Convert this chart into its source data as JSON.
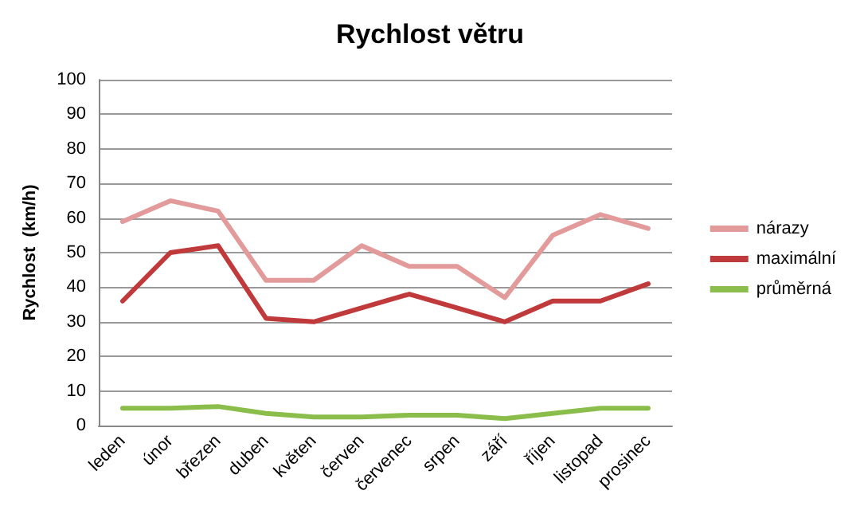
{
  "chart_data": {
    "type": "line",
    "title": "Rychlost větru",
    "ylabel": "Rychlost  (km/h)",
    "categories": [
      "leden",
      "únor",
      "březen",
      "duben",
      "květen",
      "červen",
      "červenec",
      "srpen",
      "září",
      "říjen",
      "listopad",
      "prosinec"
    ],
    "series": [
      {
        "name": "nárazy",
        "color": "#e39a9a",
        "values": [
          59,
          65,
          62,
          42,
          42,
          52,
          46,
          46,
          37,
          55,
          61,
          57
        ]
      },
      {
        "name": "maximální",
        "color": "#c0393b",
        "values": [
          36,
          50,
          52,
          31,
          30,
          34,
          38,
          34,
          30,
          36,
          36,
          41
        ]
      },
      {
        "name": "průměrná",
        "color": "#8bbd4a",
        "values": [
          5,
          5,
          5.5,
          3.5,
          2.5,
          2.5,
          3,
          3,
          2,
          3.5,
          5,
          5
        ]
      }
    ],
    "ylim": [
      0,
      100
    ],
    "yticks": [
      0,
      10,
      20,
      30,
      40,
      50,
      60,
      70,
      80,
      90,
      100
    ],
    "grid": "y",
    "legend": "right",
    "marker": "none",
    "line_style": "solid"
  }
}
